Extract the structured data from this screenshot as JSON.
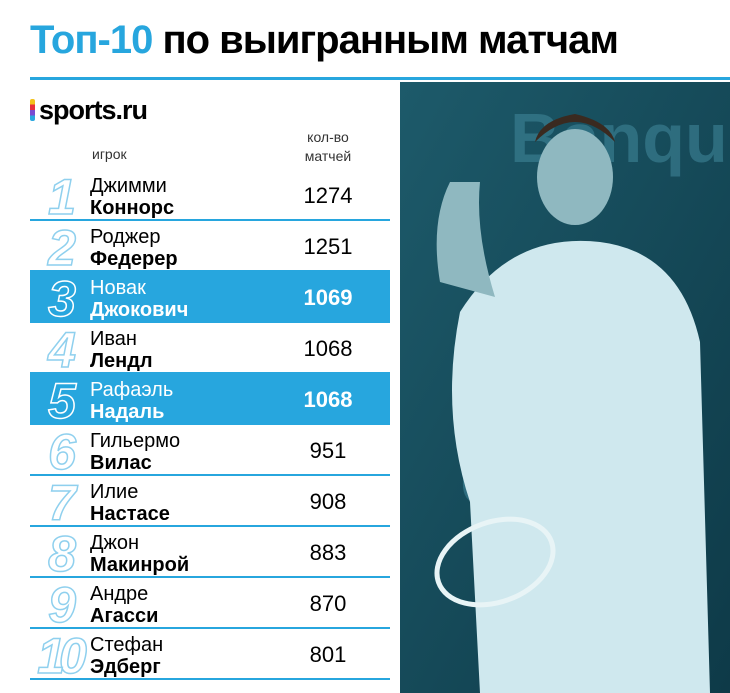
{
  "header": {
    "title_accent": "Топ-10",
    "title_rest": "по выигранным матчам",
    "logo": "sports.ru"
  },
  "table": {
    "columns": [
      "игрок",
      "кол-во матчей"
    ],
    "rows": [
      {
        "rank": "1",
        "first_name": "Джимми",
        "last_name": "Коннорс",
        "matches": "1274",
        "highlight": false
      },
      {
        "rank": "2",
        "first_name": "Роджер",
        "last_name": "Федерер",
        "matches": "1251",
        "highlight": false
      },
      {
        "rank": "3",
        "first_name": "Новак",
        "last_name": "Джокович",
        "matches": "1069",
        "highlight": true
      },
      {
        "rank": "4",
        "first_name": "Иван",
        "last_name": "Лендл",
        "matches": "1068",
        "highlight": false
      },
      {
        "rank": "5",
        "first_name": "Рафаэль",
        "last_name": "Надаль",
        "matches": "1068",
        "highlight": true
      },
      {
        "rank": "6",
        "first_name": "Гильермо",
        "last_name": "Вилас",
        "matches": "951",
        "highlight": false
      },
      {
        "rank": "7",
        "first_name": "Илие",
        "last_name": "Настасе",
        "matches": "908",
        "highlight": false
      },
      {
        "rank": "8",
        "first_name": "Джон",
        "last_name": "Макинрой",
        "matches": "883",
        "highlight": false
      },
      {
        "rank": "9",
        "first_name": "Андре",
        "last_name": "Агасси",
        "matches": "870",
        "highlight": false
      },
      {
        "rank": "10",
        "first_name": "Стефан",
        "last_name": "Эдберг",
        "matches": "801",
        "highlight": false
      }
    ]
  }
}
